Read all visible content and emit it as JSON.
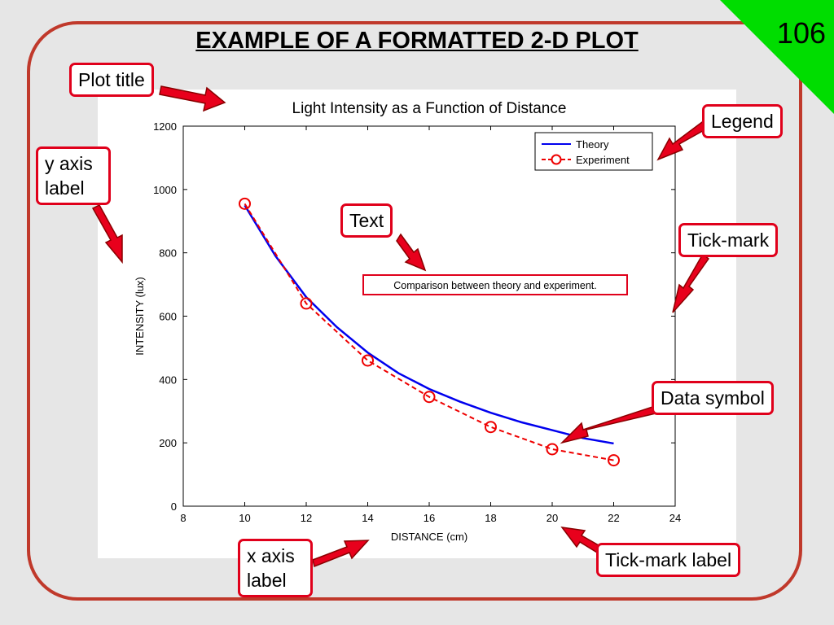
{
  "slide": {
    "title": "EXAMPLE OF A FORMATTED 2-D PLOT",
    "number": "106",
    "corner_color": "#00dd00",
    "frame_color": "#c0392b"
  },
  "callouts": {
    "plot_title": "Plot title",
    "legend": "Legend",
    "y_axis_label": "y axis\nlabel",
    "text": "Text",
    "tick_mark": "Tick-mark",
    "data_symbol": "Data symbol",
    "x_axis_label": "x axis\nlabel",
    "tick_mark_label": "Tick-mark label"
  },
  "chart_data": {
    "type": "line",
    "title": "Light Intensity as a Function of Distance",
    "xlabel": "DISTANCE (cm)",
    "ylabel": "INTENSITY (lux)",
    "xlim": [
      8,
      24
    ],
    "ylim": [
      0,
      1200
    ],
    "xticks": [
      8,
      10,
      12,
      14,
      16,
      18,
      20,
      22,
      24
    ],
    "yticks": [
      0,
      200,
      400,
      600,
      800,
      1000,
      1200
    ],
    "annotation": "Comparison between theory and experiment.",
    "legend_position": "top-right",
    "series": [
      {
        "name": "Theory",
        "style": "solid",
        "color": "#0000ee",
        "x": [
          10,
          11,
          12,
          13,
          14,
          15,
          16,
          17,
          18,
          19,
          20,
          21,
          22
        ],
        "y": [
          950,
          790,
          660,
          565,
          485,
          420,
          370,
          330,
          295,
          265,
          240,
          215,
          198
        ]
      },
      {
        "name": "Experiment",
        "style": "dashed",
        "marker": "circle",
        "color": "#ee0000",
        "x": [
          10,
          12,
          14,
          16,
          18,
          20,
          22
        ],
        "y": [
          955,
          640,
          460,
          345,
          250,
          180,
          145
        ]
      }
    ]
  }
}
